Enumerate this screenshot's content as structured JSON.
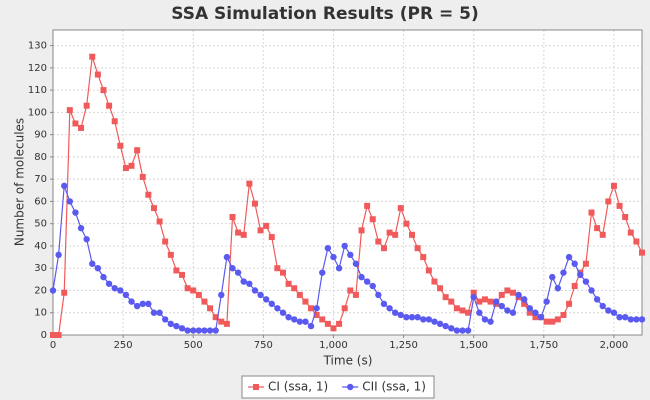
{
  "chart_data": {
    "type": "line",
    "title": "SSA Simulation Results (PR = 5)",
    "x_label": "Time (s)",
    "y_label": "Number of molecules",
    "x": [
      0,
      20,
      40,
      60,
      80,
      100,
      120,
      140,
      160,
      180,
      200,
      220,
      240,
      260,
      280,
      300,
      320,
      340,
      360,
      380,
      400,
      420,
      440,
      460,
      480,
      500,
      520,
      540,
      560,
      580,
      600,
      620,
      640,
      660,
      680,
      700,
      720,
      740,
      760,
      780,
      800,
      820,
      840,
      860,
      880,
      900,
      920,
      940,
      960,
      980,
      1000,
      1020,
      1040,
      1060,
      1080,
      1100,
      1120,
      1140,
      1160,
      1180,
      1200,
      1220,
      1240,
      1260,
      1280,
      1300,
      1320,
      1340,
      1360,
      1380,
      1400,
      1420,
      1440,
      1460,
      1480,
      1500,
      1520,
      1540,
      1560,
      1580,
      1600,
      1620,
      1640,
      1660,
      1680,
      1700,
      1720,
      1740,
      1760,
      1780,
      1800,
      1820,
      1840,
      1860,
      1880,
      1900,
      1920,
      1940,
      1960,
      1980,
      2000,
      2020,
      2040,
      2060,
      2080,
      2100
    ],
    "series": [
      {
        "name": "CI (ssa, 1)",
        "color": "#f05a5a",
        "marker": "square",
        "values": [
          0,
          0,
          19,
          101,
          95,
          93,
          103,
          125,
          117,
          110,
          103,
          96,
          85,
          75,
          76,
          83,
          71,
          63,
          57,
          51,
          42,
          36,
          29,
          27,
          21,
          20,
          18,
          15,
          12,
          8,
          6,
          5,
          53,
          46,
          45,
          68,
          59,
          47,
          49,
          44,
          30,
          28,
          23,
          21,
          18,
          15,
          12,
          9,
          7,
          5,
          3,
          5,
          12,
          20,
          18,
          47,
          58,
          52,
          42,
          39,
          46,
          45,
          57,
          50,
          45,
          39,
          35,
          29,
          24,
          21,
          17,
          15,
          12,
          11,
          10,
          19,
          15,
          16,
          15,
          14,
          18,
          20,
          19,
          17,
          14,
          10,
          8,
          8,
          6,
          6,
          7,
          9,
          14,
          22,
          28,
          32,
          55,
          48,
          45,
          60,
          67,
          58,
          53,
          46,
          42,
          37
        ]
      },
      {
        "name": "CII (ssa, 1)",
        "color": "#5a5af0",
        "marker": "circle",
        "values": [
          20,
          36,
          67,
          60,
          55,
          48,
          43,
          32,
          30,
          26,
          23,
          21,
          20,
          18,
          15,
          13,
          14,
          14,
          10,
          10,
          7,
          5,
          4,
          3,
          2,
          2,
          2,
          2,
          2,
          2,
          18,
          35,
          30,
          28,
          24,
          23,
          20,
          18,
          16,
          14,
          12,
          10,
          8,
          7,
          6,
          6,
          4,
          12,
          28,
          39,
          35,
          30,
          40,
          36,
          32,
          26,
          24,
          22,
          18,
          14,
          12,
          10,
          9,
          8,
          8,
          8,
          7,
          7,
          6,
          5,
          4,
          3,
          2,
          2,
          2,
          17,
          10,
          7,
          6,
          15,
          13,
          11,
          10,
          18,
          16,
          12,
          10,
          8,
          15,
          26,
          21,
          28,
          35,
          32,
          27,
          24,
          20,
          16,
          13,
          11,
          10,
          8,
          8,
          7,
          7,
          7
        ]
      }
    ],
    "xlim": [
      0,
      2100
    ],
    "ylim": [
      0,
      137
    ],
    "xticks": [
      0,
      250,
      500,
      750,
      {
        "value": 1000,
        "label": "1,000"
      },
      {
        "value": 1250,
        "label": "1,250"
      },
      {
        "value": 1500,
        "label": "1,500"
      },
      {
        "value": 1750,
        "label": "1,750"
      },
      {
        "value": 2000,
        "label": "2,000"
      }
    ],
    "yticks": [
      0,
      10,
      20,
      30,
      40,
      50,
      60,
      70,
      80,
      90,
      100,
      110,
      120,
      130
    ],
    "grid": true,
    "legend": "bottom"
  }
}
